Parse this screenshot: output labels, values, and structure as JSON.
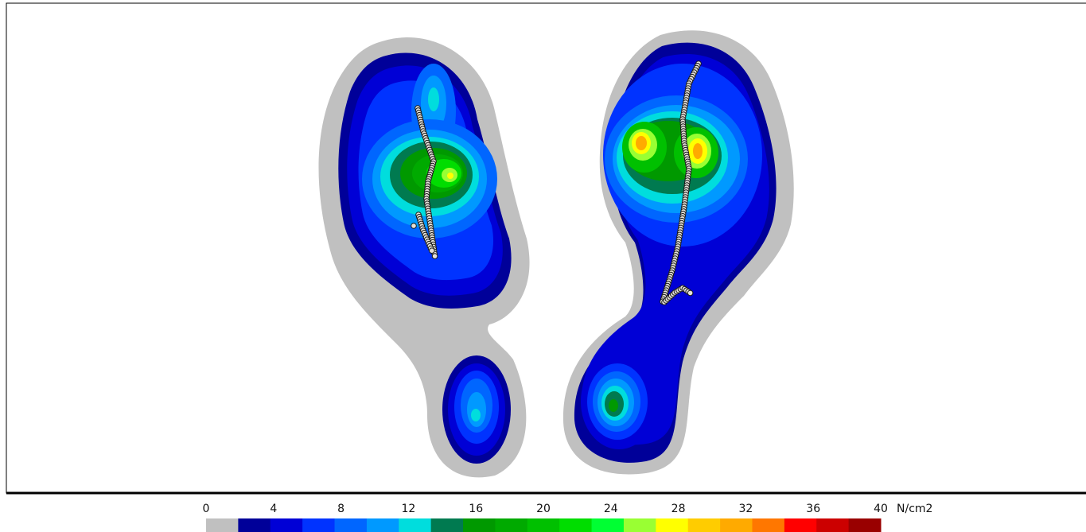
{
  "colorbar": {
    "ticks": [
      0,
      4,
      8,
      12,
      16,
      20,
      24,
      28,
      32,
      36,
      40
    ],
    "unit": "N/cm2",
    "colors": [
      "#c0c0c0",
      "#000099",
      "#0000d6",
      "#0033ff",
      "#0066ff",
      "#0099ff",
      "#00dddd",
      "#007a50",
      "#009900",
      "#00aa00",
      "#00c000",
      "#00dd00",
      "#00ff33",
      "#99ff33",
      "#ffff00",
      "#ffcc00",
      "#ffaa00",
      "#ff7700",
      "#ff0000",
      "#cc0000",
      "#990000"
    ]
  }
}
